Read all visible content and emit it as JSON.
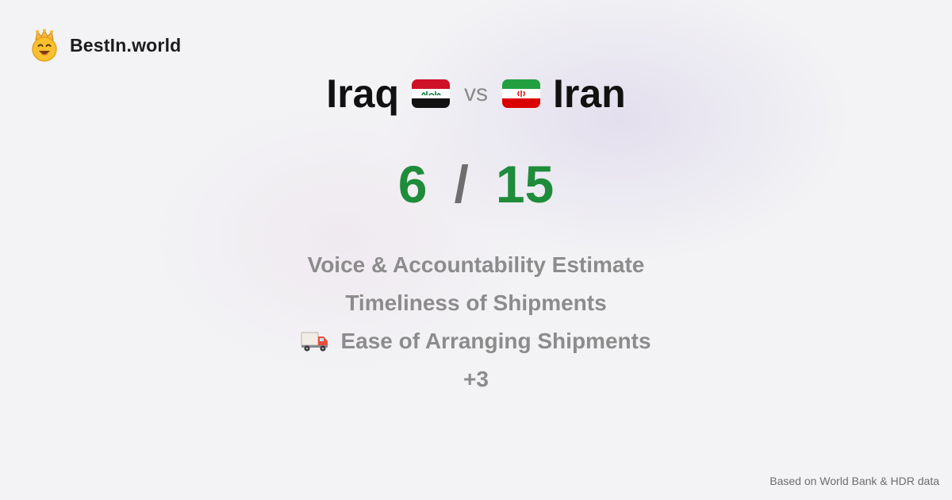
{
  "brand": {
    "name": "BestIn.world",
    "logo_icon": "crown-smiley-icon"
  },
  "comparison": {
    "left_country": "Iraq",
    "left_flag_icon": "iraq-flag-icon",
    "vs_label": "vs",
    "right_country": "Iran",
    "right_flag_icon": "iran-flag-icon"
  },
  "score": {
    "left": "6",
    "separator": "/",
    "right": "15",
    "color": "#1e8c3a"
  },
  "metrics": [
    {
      "label": "Voice & Accountability Estimate"
    },
    {
      "label": "Timeliness of Shipments"
    },
    {
      "label": "Ease of Arranging Shipments",
      "icon": "delivery-truck-icon"
    },
    {
      "label": "+3"
    }
  ],
  "footer": {
    "source": "Based on World Bank & HDR data"
  }
}
